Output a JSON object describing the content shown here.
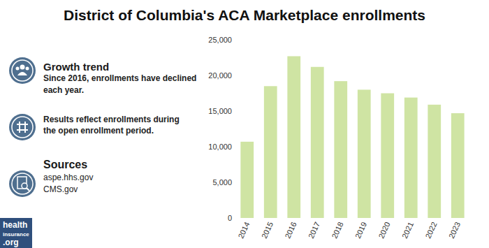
{
  "chart_data": {
    "type": "bar",
    "title": "District of Columbia's ACA Marketplace enrollments",
    "categories": [
      "2014",
      "2015",
      "2016",
      "2017",
      "2018",
      "2019",
      "2020",
      "2021",
      "2022",
      "2023"
    ],
    "values": [
      10700,
      18500,
      22700,
      21200,
      19200,
      18000,
      17500,
      16900,
      15900,
      14700
    ],
    "color": "#cfe4a3",
    "ylim": [
      0,
      25000
    ],
    "yticks": [
      0,
      {
        "value": 5000,
        "label": "5,000"
      },
      {
        "value": 10000,
        "label": "10,000"
      },
      {
        "value": 15000,
        "label": "15,000"
      },
      {
        "value": 20000,
        "label": "20,000"
      },
      {
        "value": 25000,
        "label": "25,000"
      }
    ],
    "grid": false
  },
  "sidebar": {
    "growth_title": "Growth trend",
    "growth_text": [
      "Since 2016, enrollments have declined",
      "each year."
    ],
    "results_text": [
      "Results reflect enrollments during",
      "the open enrollment period."
    ],
    "sources_title": "Sources",
    "sources": [
      "aspe.hhs.gov",
      "CMS.gov"
    ],
    "logo": [
      "health",
      "insurance",
      ".org"
    ]
  }
}
